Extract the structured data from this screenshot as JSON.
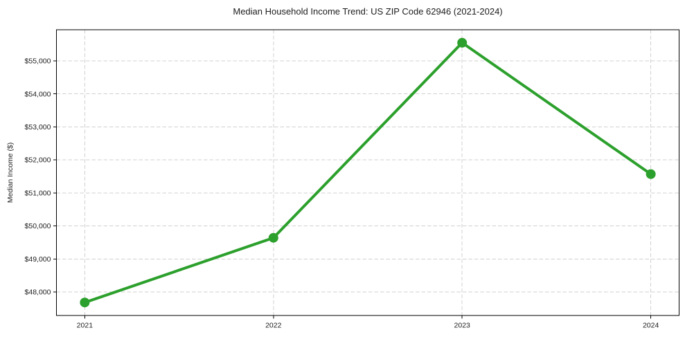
{
  "page": {
    "background": "#ffffff"
  },
  "chart_data": {
    "type": "line",
    "title": "Median Household Income Trend: US ZIP Code 62946 (2021-2024)",
    "xlabel": "",
    "ylabel": "Median Income ($)",
    "categories": [
      2021,
      2022,
      2023,
      2024
    ],
    "xtick_labels": [
      "2021",
      "2022",
      "2023",
      "2024"
    ],
    "series": [
      {
        "values": [
          47680,
          49640,
          55550,
          51570
        ],
        "color": "#2ca02c",
        "marker": "circle"
      }
    ],
    "yticks": [
      48000,
      49000,
      50000,
      51000,
      52000,
      53000,
      54000,
      55000
    ],
    "ytick_labels": [
      "$48,000",
      "$49,000",
      "$50,000",
      "$51,000",
      "$52,000",
      "$53,000",
      "$54,000",
      "$55,000"
    ],
    "ylim": [
      47286.5,
      55943.5
    ],
    "xlim": [
      2020.85,
      2024.15
    ],
    "grid": true,
    "grid_style": "dashed",
    "legend": false,
    "colors": {
      "line": "#2ca02c",
      "grid": "#d0d0d0",
      "spine": "#000000",
      "text": "#1c1c1c"
    }
  }
}
